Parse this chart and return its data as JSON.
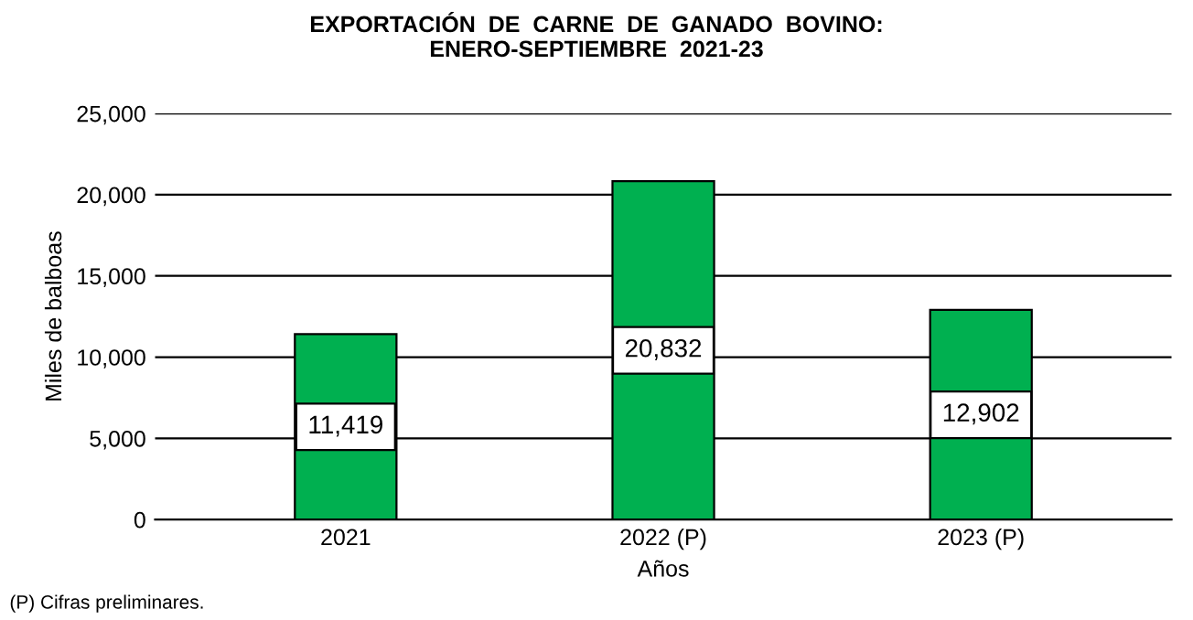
{
  "chart_data": {
    "type": "bar",
    "title": "EXPORTACIÓN  DE  CARNE  DE  GANADO  BOVINO:\nENERO-SEPTIEMBRE  2021-23",
    "categories": [
      "2021",
      "2022 (P)",
      "2023 (P)"
    ],
    "values": [
      11419,
      20832,
      12902
    ],
    "color": "#00b050",
    "xlabel": "Años",
    "ylabel": "Miles de balboas",
    "ylim": [
      0,
      25000
    ],
    "yticks": [
      0,
      {
        "value": 5000,
        "label": "5,000"
      },
      {
        "value": 10000,
        "label": "10,000"
      },
      {
        "value": 15000,
        "label": "15,000"
      },
      {
        "value": 20000,
        "label": "20,000"
      },
      {
        "value": 25000,
        "label": "25,000"
      }
    ],
    "grid": "y",
    "value_labels": [
      "11,419",
      "20,832",
      "12,902"
    ],
    "annotations": [
      "(P) Cifras preliminares."
    ]
  }
}
